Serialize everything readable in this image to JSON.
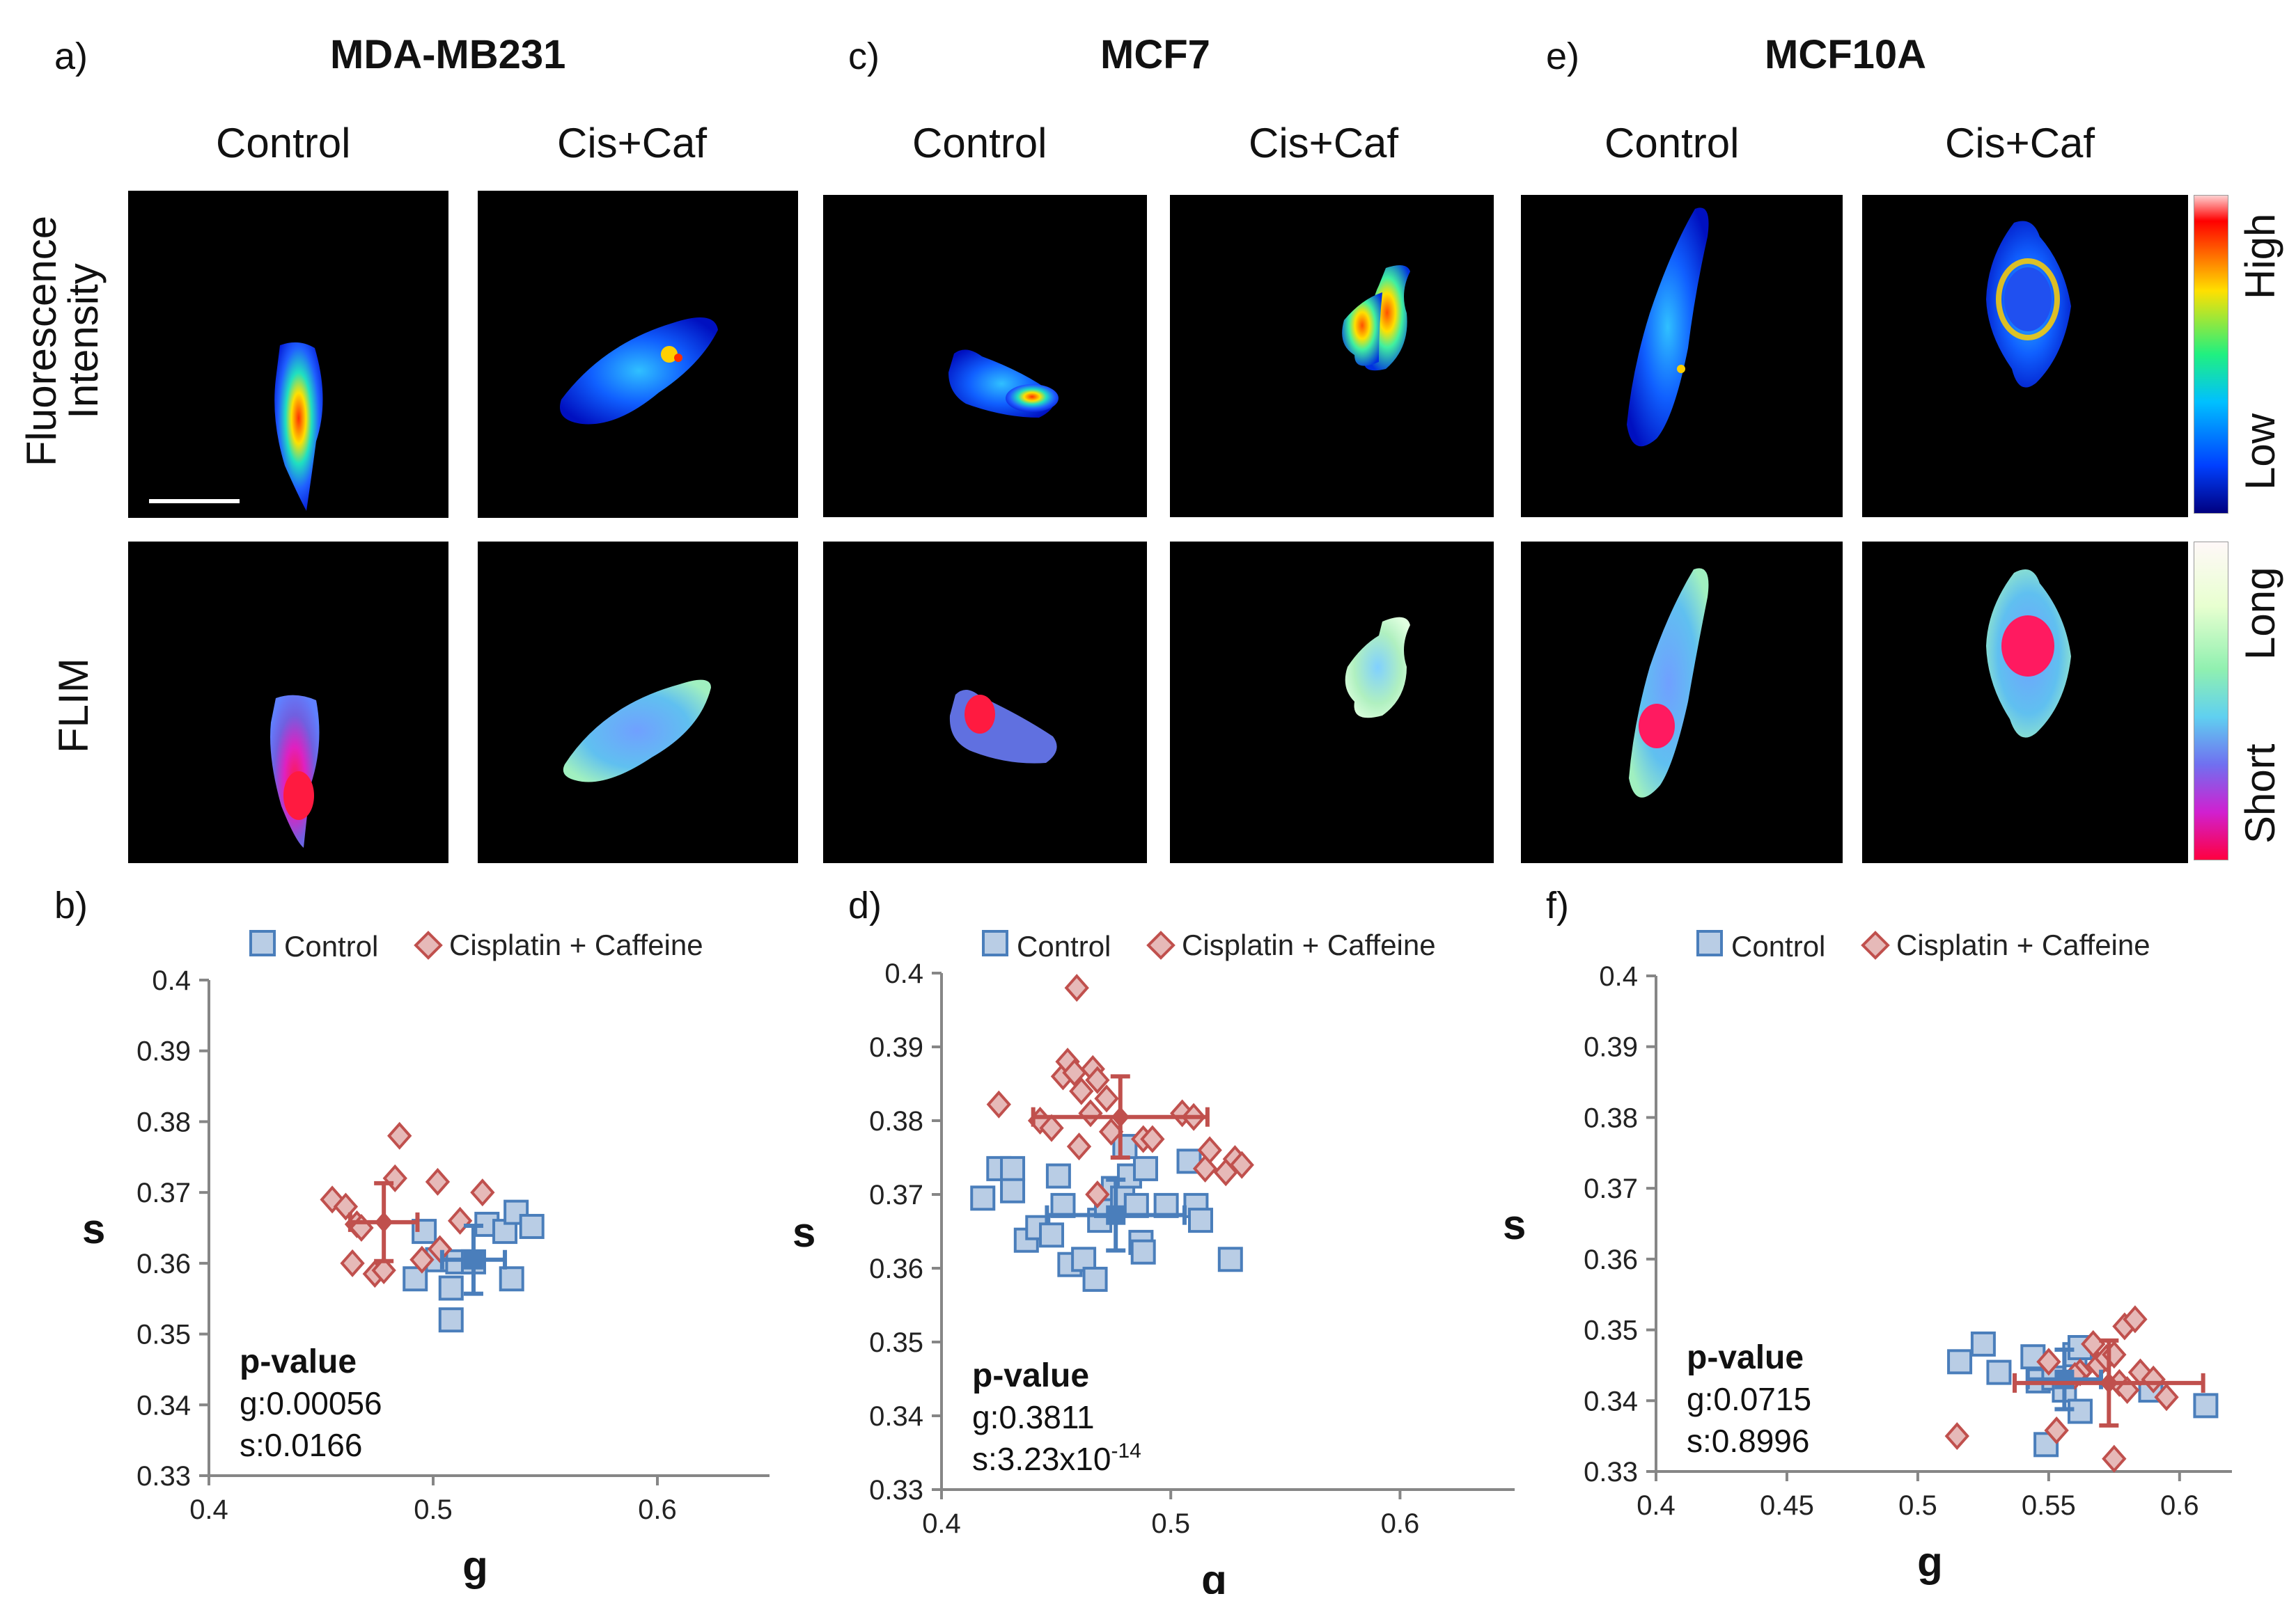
{
  "panels": {
    "a": {
      "label": "a)",
      "cell_line": "MDA-MB231"
    },
    "b": {
      "label": "b)"
    },
    "c": {
      "label": "c)",
      "cell_line": "MCF7"
    },
    "d": {
      "label": "d)"
    },
    "e": {
      "label": "e)",
      "cell_line": "MCF10A"
    },
    "f": {
      "label": "f)"
    }
  },
  "conditions": {
    "control": "Control",
    "treated": "Cis+Caf"
  },
  "rows": {
    "intensity_line1": "Fluorescence",
    "intensity_line2": "Intensity",
    "flim": "FLIM"
  },
  "colorbars": {
    "intensity": {
      "high": "High",
      "low": "Low"
    },
    "flim": {
      "long": "Long",
      "short": "Short"
    }
  },
  "colors": {
    "control": "#4a7ebb",
    "control_fill": "#b9cde5",
    "treated": "#c0504d",
    "treated_fill": "#e6b9b8",
    "axis": "#868686"
  },
  "chart_data": [
    {
      "id": "b",
      "type": "scatter",
      "xlabel": "g",
      "ylabel": "s",
      "xlim": [
        0.4,
        0.65
      ],
      "ylim": [
        0.33,
        0.4
      ],
      "xticks": [
        0.4,
        0.5,
        0.6
      ],
      "xtick_labels": [
        "0.4",
        "0.5",
        "0.6"
      ],
      "yticks": [
        0.33,
        0.34,
        0.35,
        0.36,
        0.37,
        0.38,
        0.39,
        0.4
      ],
      "ytick_labels": [
        "0.33",
        "0.34",
        "0.35",
        "0.36",
        "0.37",
        "0.38",
        "0.39",
        "0.4"
      ],
      "legend": [
        "Control",
        "Cisplatin + Caffeine"
      ],
      "stats": {
        "title": "p-value",
        "g": "g:0.00056",
        "s_prefix": "s:0.0166",
        "s_sup": ""
      },
      "series": [
        {
          "name": "Control",
          "marker": "square",
          "points": [
            [
              0.496,
              0.3645
            ],
            [
              0.502,
              0.3605
            ],
            [
              0.508,
              0.3565
            ],
            [
              0.492,
              0.3578
            ],
            [
              0.511,
              0.3602
            ],
            [
              0.524,
              0.3655
            ],
            [
              0.532,
              0.3645
            ],
            [
              0.537,
              0.3672
            ],
            [
              0.544,
              0.3652
            ],
            [
              0.535,
              0.3578
            ],
            [
              0.508,
              0.352
            ],
            [
              0.518,
              0.3602
            ]
          ],
          "mean": [
            0.518,
            0.3605
          ],
          "err": [
            0.014,
            0.0048
          ]
        },
        {
          "name": "Cisplatin + Caffeine",
          "marker": "diamond",
          "points": [
            [
              0.455,
              0.369
            ],
            [
              0.461,
              0.368
            ],
            [
              0.466,
              0.3655
            ],
            [
              0.464,
              0.36
            ],
            [
              0.474,
              0.3585
            ],
            [
              0.478,
              0.359
            ],
            [
              0.483,
              0.372
            ],
            [
              0.485,
              0.378
            ],
            [
              0.502,
              0.3715
            ],
            [
              0.512,
              0.366
            ],
            [
              0.522,
              0.37
            ],
            [
              0.495,
              0.3605
            ],
            [
              0.503,
              0.362
            ],
            [
              0.468,
              0.365
            ]
          ],
          "mean": [
            0.478,
            0.3658
          ],
          "err": [
            0.015,
            0.0055
          ]
        }
      ]
    },
    {
      "id": "d",
      "type": "scatter",
      "xlabel": "g",
      "ylabel": "s",
      "xlim": [
        0.4,
        0.65
      ],
      "ylim": [
        0.33,
        0.4
      ],
      "xticks": [
        0.4,
        0.5,
        0.6
      ],
      "xtick_labels": [
        "0.4",
        "0.5",
        "0.6"
      ],
      "yticks": [
        0.33,
        0.34,
        0.35,
        0.36,
        0.37,
        0.38,
        0.39,
        0.4
      ],
      "ytick_labels": [
        "0.33",
        "0.34",
        "0.35",
        "0.36",
        "0.37",
        "0.38",
        "0.39",
        "0.4"
      ],
      "legend": [
        "Control",
        "Cisplatin + Caffeine"
      ],
      "stats": {
        "title": "p-value",
        "g": "g:0.3811",
        "s_prefix": "s:3.23x10",
        "s_sup": "-14"
      },
      "series": [
        {
          "name": "Control",
          "marker": "square",
          "points": [
            [
              0.418,
              0.3695
            ],
            [
              0.425,
              0.3735
            ],
            [
              0.431,
              0.3735
            ],
            [
              0.431,
              0.3705
            ],
            [
              0.437,
              0.3638
            ],
            [
              0.442,
              0.3655
            ],
            [
              0.448,
              0.3645
            ],
            [
              0.451,
              0.3725
            ],
            [
              0.453,
              0.3685
            ],
            [
              0.456,
              0.3605
            ],
            [
              0.462,
              0.3612
            ],
            [
              0.467,
              0.3585
            ],
            [
              0.469,
              0.3665
            ],
            [
              0.472,
              0.3685
            ],
            [
              0.475,
              0.3708
            ],
            [
              0.479,
              0.3695
            ],
            [
              0.482,
              0.3725
            ],
            [
              0.485,
              0.3685
            ],
            [
              0.487,
              0.3635
            ],
            [
              0.488,
              0.3622
            ],
            [
              0.489,
              0.3735
            ],
            [
              0.498,
              0.3685
            ],
            [
              0.508,
              0.3745
            ],
            [
              0.511,
              0.3685
            ],
            [
              0.513,
              0.3665
            ],
            [
              0.526,
              0.3612
            ],
            [
              0.48,
              0.3765
            ]
          ],
          "mean": [
            0.476,
            0.3672
          ],
          "err": [
            0.03,
            0.0048
          ]
        },
        {
          "name": "Cisplatin + Caffeine",
          "marker": "diamond",
          "points": [
            [
              0.425,
              0.3822
            ],
            [
              0.443,
              0.38
            ],
            [
              0.448,
              0.379
            ],
            [
              0.453,
              0.386
            ],
            [
              0.455,
              0.388
            ],
            [
              0.458,
              0.3865
            ],
            [
              0.461,
              0.384
            ],
            [
              0.459,
              0.398
            ],
            [
              0.466,
              0.387
            ],
            [
              0.468,
              0.3855
            ],
            [
              0.472,
              0.383
            ],
            [
              0.474,
              0.3785
            ],
            [
              0.465,
              0.381
            ],
            [
              0.488,
              0.3775
            ],
            [
              0.492,
              0.3775
            ],
            [
              0.505,
              0.381
            ],
            [
              0.51,
              0.3805
            ],
            [
              0.515,
              0.3735
            ],
            [
              0.517,
              0.376
            ],
            [
              0.524,
              0.373
            ],
            [
              0.528,
              0.3748
            ],
            [
              0.531,
              0.374
            ],
            [
              0.46,
              0.3765
            ],
            [
              0.468,
              0.37
            ]
          ],
          "mean": [
            0.478,
            0.3805
          ],
          "err": [
            0.038,
            0.0055
          ]
        }
      ]
    },
    {
      "id": "f",
      "type": "scatter",
      "xlabel": "g",
      "ylabel": "s",
      "xlim": [
        0.4,
        0.62
      ],
      "ylim": [
        0.33,
        0.4
      ],
      "xticks": [
        0.4,
        0.45,
        0.5,
        0.55,
        0.6
      ],
      "xtick_labels": [
        "0.4",
        "0.45",
        "0.5",
        "0.55",
        "0.6"
      ],
      "yticks": [
        0.33,
        0.34,
        0.35,
        0.36,
        0.37,
        0.38,
        0.39,
        0.4
      ],
      "ytick_labels": [
        "0.33",
        "0.34",
        "0.35",
        "0.36",
        "0.37",
        "0.38",
        "0.39",
        "0.4"
      ],
      "legend": [
        "Control",
        "Cisplatin + Caffeine"
      ],
      "stats": {
        "title": "p-value",
        "g": "g:0.0715",
        "s_prefix": "s:0.8996",
        "s_sup": ""
      },
      "series": [
        {
          "name": "Control",
          "marker": "square",
          "points": [
            [
              0.516,
              0.3455
            ],
            [
              0.525,
              0.348
            ],
            [
              0.531,
              0.344
            ],
            [
              0.544,
              0.3462
            ],
            [
              0.546,
              0.3428
            ],
            [
              0.549,
              0.3338
            ],
            [
              0.552,
              0.3432
            ],
            [
              0.556,
              0.3415
            ],
            [
              0.56,
              0.3465
            ],
            [
              0.562,
              0.3475
            ],
            [
              0.562,
              0.3385
            ],
            [
              0.589,
              0.3415
            ],
            [
              0.61,
              0.3393
            ]
          ],
          "mean": [
            0.556,
            0.343
          ],
          "err": [
            0.014,
            0.0042
          ]
        },
        {
          "name": "Cisplatin + Caffeine",
          "marker": "diamond",
          "points": [
            [
              0.515,
              0.335
            ],
            [
              0.55,
              0.3455
            ],
            [
              0.553,
              0.3358
            ],
            [
              0.567,
              0.348
            ],
            [
              0.569,
              0.345
            ],
            [
              0.572,
              0.346
            ],
            [
              0.575,
              0.3465
            ],
            [
              0.577,
              0.3425
            ],
            [
              0.579,
              0.3505
            ],
            [
              0.58,
              0.3415
            ],
            [
              0.583,
              0.3515
            ],
            [
              0.585,
              0.344
            ],
            [
              0.59,
              0.343
            ],
            [
              0.595,
              0.3405
            ],
            [
              0.575,
              0.3318
            ],
            [
              0.562,
              0.344
            ],
            [
              0.56,
              0.3435
            ]
          ],
          "mean": [
            0.573,
            0.3425
          ],
          "err": [
            0.036,
            0.006
          ]
        }
      ]
    }
  ]
}
